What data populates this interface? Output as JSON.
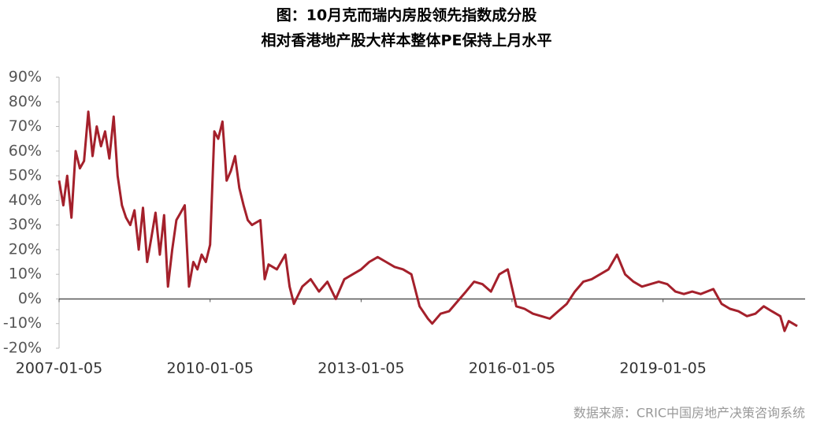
{
  "chart_data": {
    "type": "line",
    "title": "图：10月克而瑞内房股领先指数成分股",
    "subtitle": "相对香港地产股大样本整体PE保持上月水平",
    "source": "数据来源：CRIC中国房地产决策咨询系统",
    "x": [
      "2007-01-05",
      "2007-02-05",
      "2007-03-05",
      "2007-04-05",
      "2007-05-05",
      "2007-06-05",
      "2007-07-05",
      "2007-08-05",
      "2007-09-05",
      "2007-10-05",
      "2007-11-05",
      "2007-12-05",
      "2008-01-05",
      "2008-02-05",
      "2008-03-05",
      "2008-04-05",
      "2008-05-05",
      "2008-06-05",
      "2008-07-05",
      "2008-08-05",
      "2008-09-05",
      "2008-10-05",
      "2008-11-05",
      "2008-12-05",
      "2009-01-05",
      "2009-02-05",
      "2009-03-05",
      "2009-04-05",
      "2009-05-05",
      "2009-06-05",
      "2009-07-05",
      "2009-08-05",
      "2009-09-05",
      "2009-10-05",
      "2009-11-05",
      "2009-12-05",
      "2010-01-05",
      "2010-02-05",
      "2010-03-05",
      "2010-04-05",
      "2010-05-05",
      "2010-06-05",
      "2010-07-05",
      "2010-08-05",
      "2010-09-05",
      "2010-10-05",
      "2010-11-05",
      "2010-12-05",
      "2011-01-05",
      "2011-02-05",
      "2011-03-05",
      "2011-05-05",
      "2011-07-05",
      "2011-08-05",
      "2011-09-05",
      "2011-11-05",
      "2012-01-05",
      "2012-03-05",
      "2012-05-05",
      "2012-07-05",
      "2012-09-05",
      "2012-11-05",
      "2013-01-05",
      "2013-03-05",
      "2013-05-05",
      "2013-07-05",
      "2013-09-05",
      "2013-11-05",
      "2014-01-05",
      "2014-03-05",
      "2014-05-05",
      "2014-06-05",
      "2014-08-05",
      "2014-10-05",
      "2014-12-05",
      "2015-02-05",
      "2015-04-05",
      "2015-06-05",
      "2015-08-05",
      "2015-10-05",
      "2015-12-05",
      "2016-02-05",
      "2016-04-05",
      "2016-06-05",
      "2016-08-05",
      "2016-10-05",
      "2016-12-05",
      "2017-02-05",
      "2017-04-05",
      "2017-06-05",
      "2017-08-05",
      "2017-10-05",
      "2017-12-05",
      "2018-02-05",
      "2018-04-05",
      "2018-06-05",
      "2018-08-05",
      "2018-10-05",
      "2018-12-05",
      "2019-02-05",
      "2019-04-05",
      "2019-06-05",
      "2019-08-05",
      "2019-10-05",
      "2020-01-05",
      "2020-03-05",
      "2020-05-05",
      "2020-07-05",
      "2020-09-05",
      "2020-11-05",
      "2021-01-05",
      "2021-03-05",
      "2021-05-05",
      "2021-06-05",
      "2021-07-05",
      "2021-09-05"
    ],
    "series": [
      {
        "color": "#a4202b",
        "values": [
          48,
          38,
          50,
          33,
          60,
          53,
          56,
          76,
          58,
          70,
          62,
          68,
          57,
          74,
          50,
          38,
          33,
          30,
          36,
          20,
          37,
          15,
          25,
          35,
          18,
          34,
          5,
          20,
          32,
          35,
          38,
          5,
          15,
          12,
          18,
          15,
          22,
          68,
          65,
          72,
          48,
          52,
          58,
          45,
          38,
          32,
          30,
          31,
          32,
          8,
          14,
          12,
          18,
          5,
          -2,
          5,
          8,
          3,
          7,
          0,
          8,
          10,
          12,
          15,
          17,
          15,
          13,
          12,
          10,
          -3,
          -8,
          -10,
          -6,
          -5,
          -1,
          3,
          7,
          6,
          3,
          10,
          12,
          -3,
          -4,
          -6,
          -7,
          -8,
          -5,
          -2,
          3,
          7,
          8,
          10,
          12,
          18,
          10,
          7,
          5,
          6,
          7,
          6,
          3,
          2,
          3,
          2,
          4,
          -2,
          -4,
          -5,
          -7,
          -6,
          -3,
          -5,
          -7,
          -13,
          -9,
          -11
        ]
      }
    ],
    "xlim": [
      "2007-01-05",
      "2021-10-15"
    ],
    "xticks": [
      "2007-01-05",
      "2010-01-05",
      "2013-01-05",
      "2016-01-05",
      "2019-01-05"
    ],
    "ylim": [
      -20,
      90
    ],
    "yticks": [
      {
        "value": -20,
        "label": "-20%"
      },
      {
        "value": -10,
        "label": "-10%"
      },
      {
        "value": 0,
        "label": "0%"
      },
      {
        "value": 10,
        "label": "10%"
      },
      {
        "value": 20,
        "label": "20%"
      },
      {
        "value": 30,
        "label": "30%"
      },
      {
        "value": 40,
        "label": "40%"
      },
      {
        "value": 50,
        "label": "50%"
      },
      {
        "value": 60,
        "label": "60%"
      },
      {
        "value": 70,
        "label": "70%"
      },
      {
        "value": 80,
        "label": "80%"
      },
      {
        "value": 90,
        "label": "90%"
      }
    ]
  }
}
